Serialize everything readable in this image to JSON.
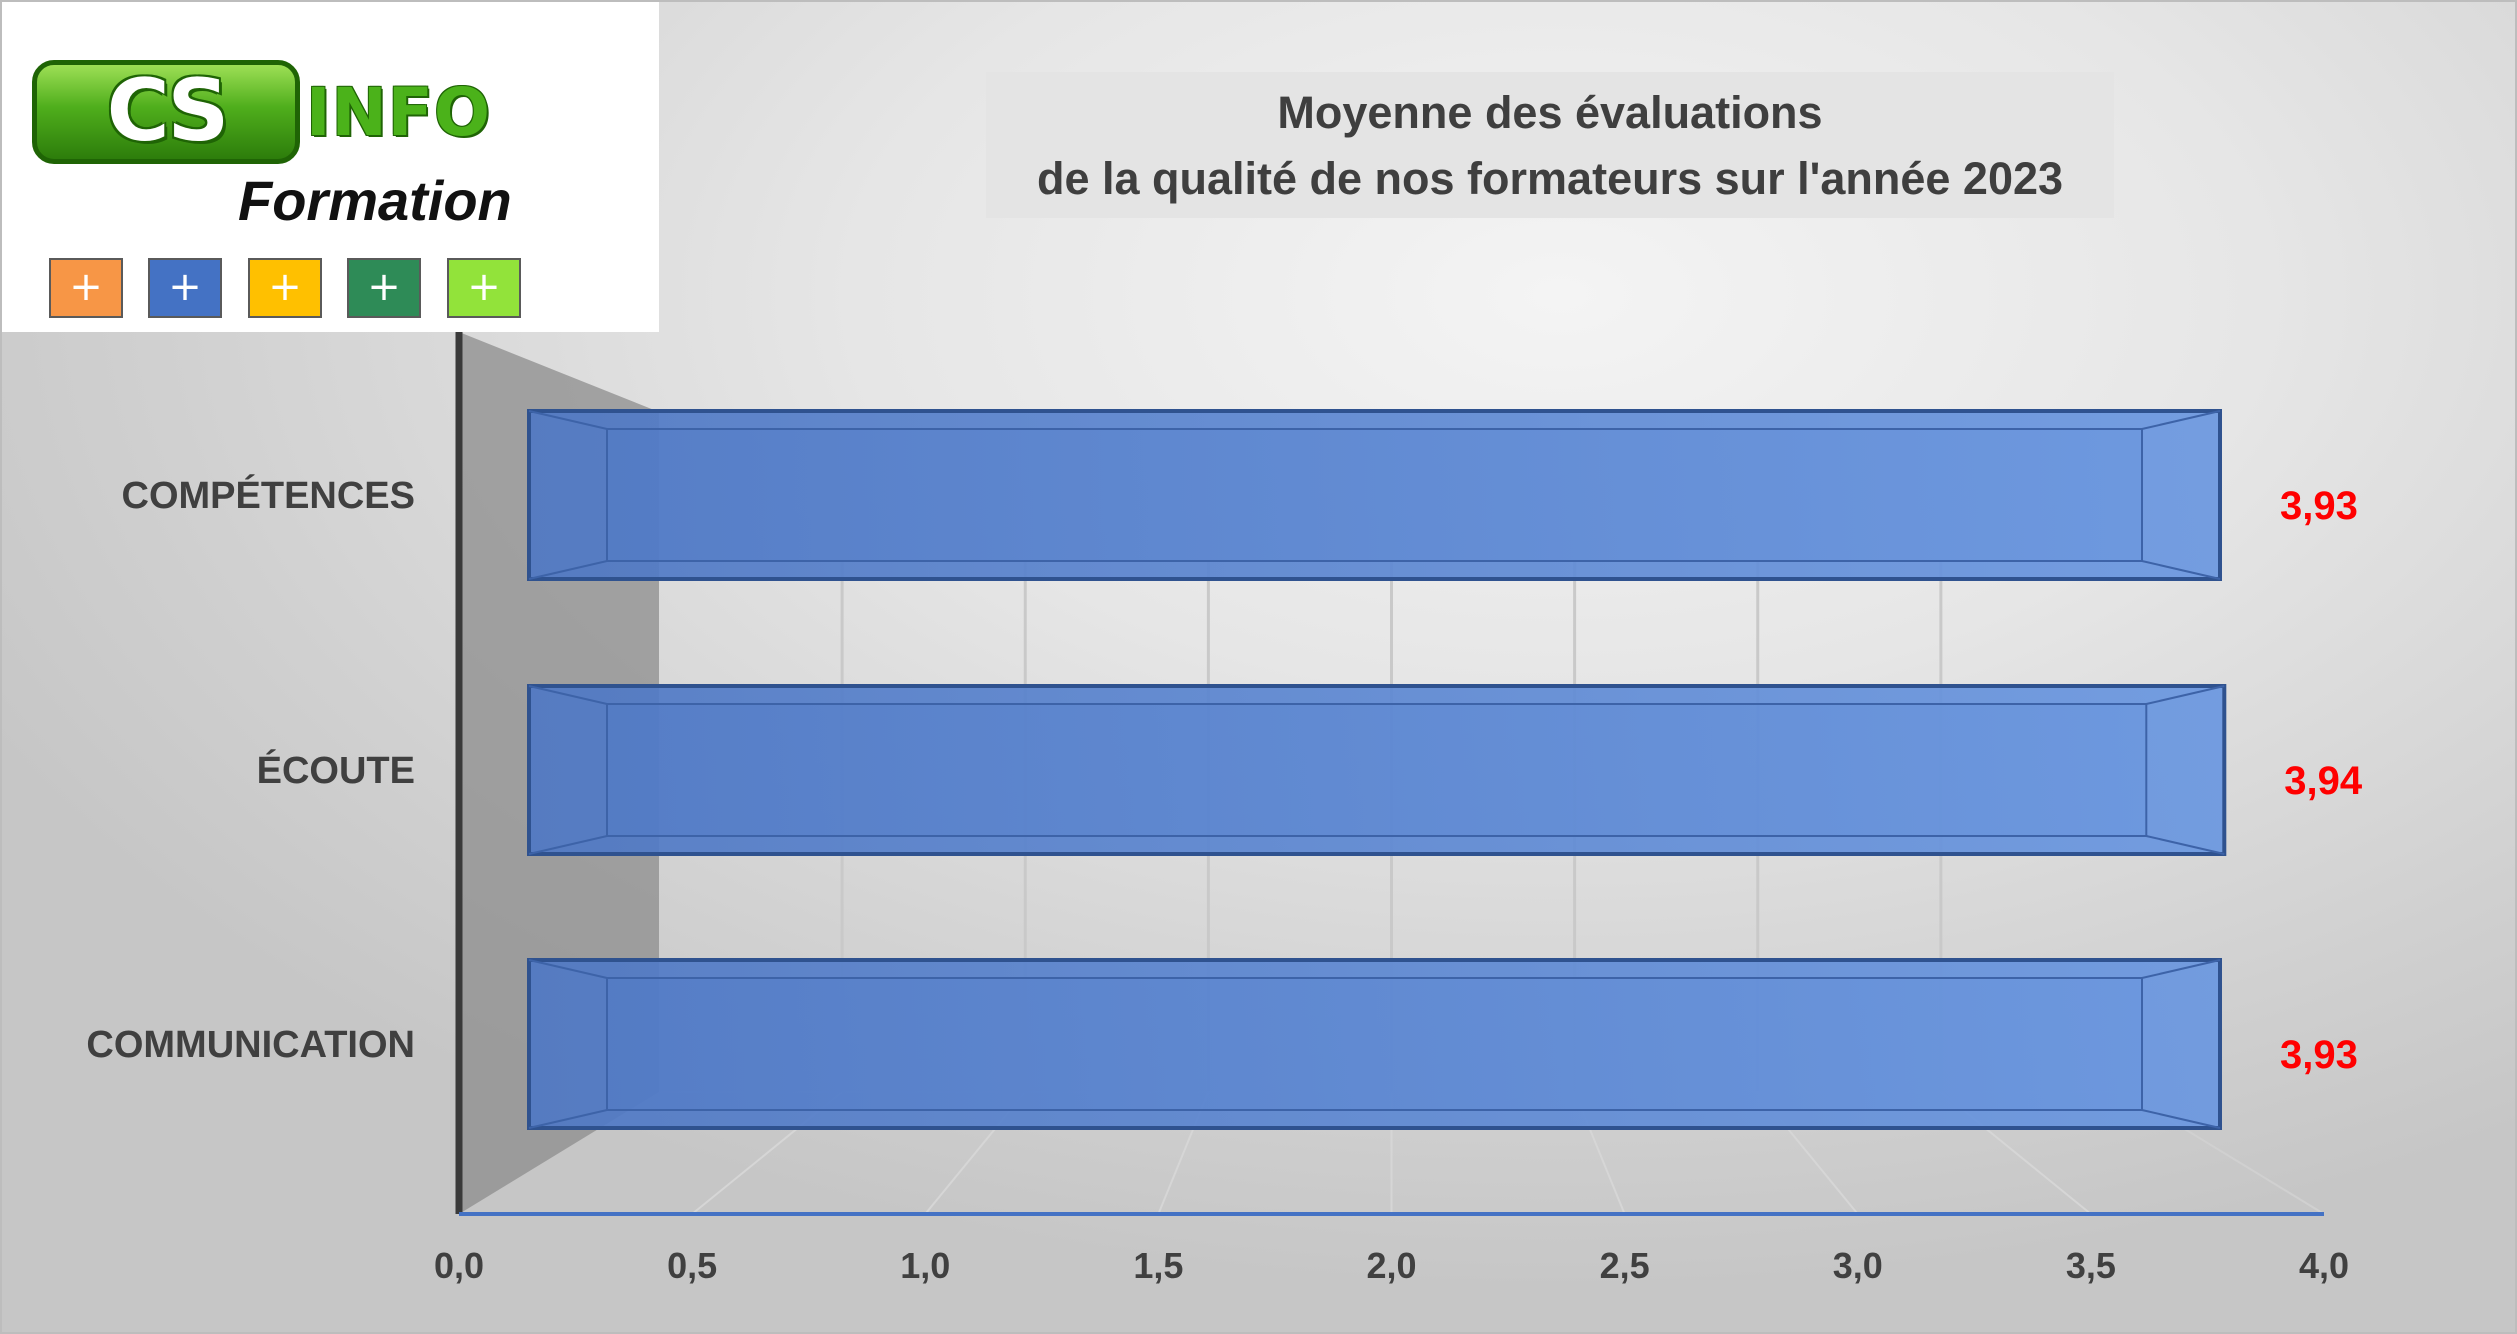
{
  "logo": {
    "cs": "CS",
    "info": "INFO",
    "formation": "Formation",
    "squares": [
      {
        "symbol": "+",
        "color": "#f79646"
      },
      {
        "symbol": "+",
        "color": "#4472c4"
      },
      {
        "symbol": "+",
        "color": "#ffc000"
      },
      {
        "symbol": "+",
        "color": "#2e8b57"
      },
      {
        "symbol": "+",
        "color": "#92e33a"
      }
    ]
  },
  "chart_data": {
    "type": "bar",
    "orientation": "horizontal",
    "title_line1": "Moyenne des évaluations",
    "title_line2": "de la qualité de nos formateurs sur l'année 2023",
    "categories": [
      "COMPÉTENCES",
      "ÉCOUTE",
      "COMMUNICATION"
    ],
    "values": [
      3.93,
      3.94,
      3.93
    ],
    "data_labels": [
      "3,93",
      "3,94",
      "3,93"
    ],
    "x_ticks": [
      "0,0",
      "0,5",
      "1,0",
      "1,5",
      "2,0",
      "2,5",
      "3,0",
      "3,5",
      "4,0"
    ],
    "xlim": [
      0,
      4
    ],
    "grid": true,
    "bar_color": "#4472c4",
    "label_color": "#ff0000"
  }
}
